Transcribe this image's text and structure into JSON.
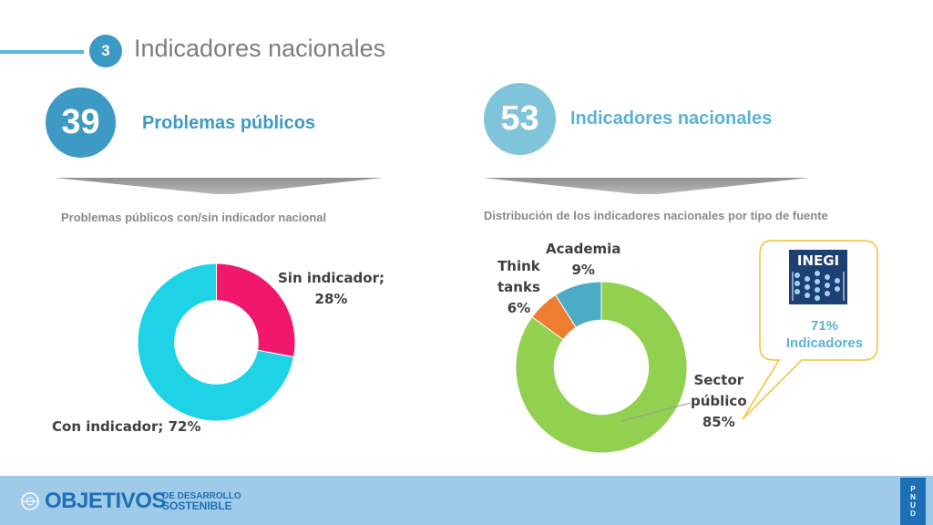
{
  "header": {
    "section_number": "3",
    "title": "Indicadores nacionales"
  },
  "left": {
    "stat_number": "39",
    "stat_label": "Problemas públicos",
    "chart_title": "Problemas públicos con/sin indicador nacional",
    "slice_labels": {
      "sin_line1": "Sin indicador;",
      "sin_line2": "28%",
      "con": "Con indicador; 72%"
    }
  },
  "right": {
    "stat_number": "53",
    "stat_label": "Indicadores nacionales",
    "chart_title": "Distribución de los indicadores nacionales por tipo de fuente",
    "slice_labels": {
      "academia_line1": "Academia",
      "academia_line2": "9%",
      "think_line1": "Think",
      "think_line2": "tanks",
      "think_line3": "6%",
      "sector_line1": "Sector",
      "sector_line2": "público",
      "sector_line3": "85%"
    },
    "callout": {
      "logo_text": "INEGI",
      "line1": "71%",
      "line2": "Indicadores"
    }
  },
  "footer": {
    "brand_main": "OBJETIVOS",
    "brand_sub1": "DE DESARROLLO",
    "brand_sub2": "SOSTENIBLE",
    "undp_text": "PNUD"
  },
  "colors": {
    "accent_blue": "#3d9ac5",
    "light_blue": "#7fc4db",
    "cyan": "#1fd3e6",
    "magenta": "#f0176d",
    "green": "#92d050",
    "orange": "#ed7d31",
    "teal": "#4bacc6",
    "callout_border": "#f2c230",
    "footer_bg": "#9fcbe8"
  },
  "chart_data": [
    {
      "type": "pie",
      "title": "Problemas públicos con/sin indicador nacional",
      "categories": [
        "Sin indicador",
        "Con indicador"
      ],
      "values": [
        28,
        72
      ],
      "colors": [
        "#f0176d",
        "#1fd3e6"
      ]
    },
    {
      "type": "pie",
      "title": "Distribución de los indicadores nacionales por tipo de fuente",
      "categories": [
        "Sector público",
        "Think tanks",
        "Academia"
      ],
      "values": [
        85,
        6,
        9
      ],
      "colors": [
        "#92d050",
        "#ed7d31",
        "#4bacc6"
      ]
    }
  ]
}
